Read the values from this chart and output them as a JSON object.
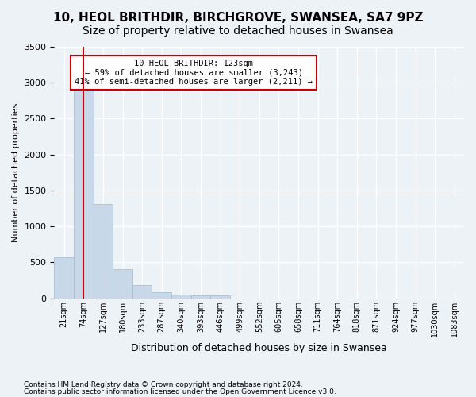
{
  "title_line1": "10, HEOL BRITHDIR, BIRCHGROVE, SWANSEA, SA7 9PZ",
  "title_line2": "Size of property relative to detached houses in Swansea",
  "xlabel": "Distribution of detached houses by size in Swansea",
  "ylabel": "Number of detached properties",
  "footnote1": "Contains HM Land Registry data © Crown copyright and database right 2024.",
  "footnote2": "Contains public sector information licensed under the Open Government Licence v3.0.",
  "annotation_line1": "10 HEOL BRITHDIR: 123sqm",
  "annotation_line2": "← 59% of detached houses are smaller (3,243)",
  "annotation_line3": "41% of semi-detached houses are larger (2,211) →",
  "property_size_sqm": 123,
  "bin_labels": [
    "21sqm",
    "74sqm",
    "127sqm",
    "180sqm",
    "233sqm",
    "287sqm",
    "340sqm",
    "393sqm",
    "446sqm",
    "499sqm",
    "552sqm",
    "605sqm",
    "658sqm",
    "711sqm",
    "764sqm",
    "818sqm",
    "871sqm",
    "924sqm",
    "977sqm",
    "1030sqm",
    "1083sqm"
  ],
  "bar_heights": [
    570,
    2900,
    1310,
    410,
    185,
    80,
    55,
    45,
    35,
    0,
    0,
    0,
    0,
    0,
    0,
    0,
    0,
    0,
    0,
    0,
    0
  ],
  "bar_color": "#c8d8e8",
  "bar_edge_color": "#a0b8cc",
  "marker_line_color": "#cc0000",
  "ylim": [
    0,
    3500
  ],
  "yticks": [
    0,
    500,
    1000,
    1500,
    2000,
    2500,
    3000,
    3500
  ],
  "background_color": "#edf2f7",
  "grid_color": "#ffffff",
  "annotation_box_color": "#ffffff",
  "annotation_box_edge": "#cc0000",
  "title1_fontsize": 11,
  "title2_fontsize": 10,
  "property_bin_index": 1
}
